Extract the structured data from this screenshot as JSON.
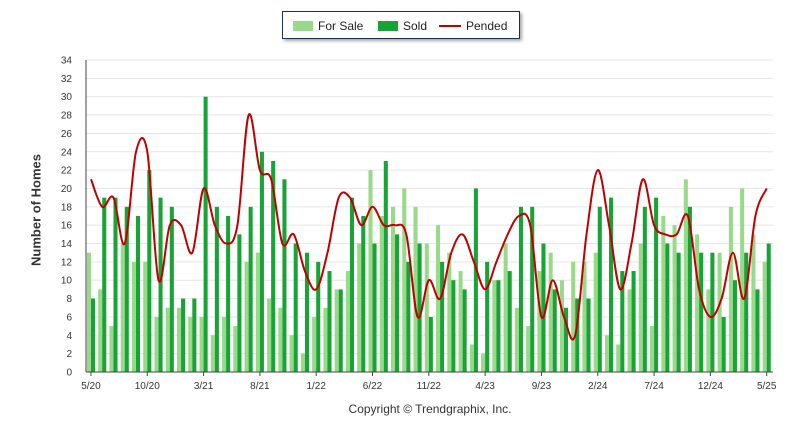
{
  "legend": {
    "for_sale": "For Sale",
    "sold": "Sold",
    "pended": "Pended"
  },
  "copyright": "Copyright © Trendgraphix, Inc.",
  "colors": {
    "for_sale": "#9ad98a",
    "sold": "#17a336",
    "pended": "#c00000",
    "grid": "#e6e6e6"
  },
  "chart_data": {
    "type": "bar",
    "title": "",
    "xlabel": "",
    "ylabel": "Number of Homes",
    "ylim": [
      0,
      34
    ],
    "yticks": [
      0,
      2,
      4,
      6,
      8,
      10,
      12,
      14,
      16,
      18,
      20,
      22,
      24,
      26,
      28,
      30,
      32,
      34
    ],
    "grid": true,
    "legend_position": "top-center",
    "categories": [
      "5/20",
      "6/20",
      "7/20",
      "8/20",
      "9/20",
      "10/20",
      "11/20",
      "12/20",
      "1/21",
      "2/21",
      "3/21",
      "4/21",
      "5/21",
      "6/21",
      "7/21",
      "8/21",
      "9/21",
      "10/21",
      "11/21",
      "12/21",
      "1/22",
      "2/22",
      "3/22",
      "4/22",
      "5/22",
      "6/22",
      "7/22",
      "8/22",
      "9/22",
      "10/22",
      "11/22",
      "12/22",
      "1/23",
      "2/23",
      "3/23",
      "4/23",
      "5/23",
      "6/23",
      "7/23",
      "8/23",
      "9/23",
      "10/23",
      "11/23",
      "12/23",
      "1/24",
      "2/24",
      "3/24",
      "4/24",
      "5/24",
      "6/24",
      "7/24",
      "8/24",
      "9/24",
      "10/24",
      "11/24",
      "12/24",
      "1/25",
      "2/25",
      "3/25",
      "4/25",
      "5/25"
    ],
    "x_tick_labels": [
      "5/20",
      "10/20",
      "3/21",
      "8/21",
      "1/22",
      "6/22",
      "11/22",
      "4/23",
      "9/23",
      "2/24",
      "7/24",
      "12/24",
      "5/25"
    ],
    "series": [
      {
        "name": "For Sale",
        "kind": "bar",
        "values": [
          13,
          9,
          5,
          14,
          12,
          12,
          6,
          7,
          7,
          6,
          6,
          4,
          6,
          5,
          12,
          13,
          8,
          7,
          4,
          2,
          6,
          7,
          9,
          11,
          14,
          22,
          17,
          18,
          20,
          18,
          14,
          16,
          13,
          11,
          3,
          2,
          10,
          14,
          7,
          5,
          11,
          13,
          10,
          12,
          12,
          13,
          4,
          3,
          9,
          14,
          5,
          17,
          16,
          21,
          15,
          9,
          13,
          18,
          20,
          15,
          12
        ]
      },
      {
        "name": "Sold",
        "kind": "bar",
        "values": [
          8,
          19,
          19,
          18,
          17,
          22,
          19,
          18,
          8,
          8,
          30,
          18,
          17,
          15,
          18,
          24,
          23,
          21,
          14,
          13,
          12,
          11,
          9,
          19,
          17,
          14,
          23,
          15,
          12,
          14,
          6,
          12,
          10,
          9,
          20,
          12,
          10,
          11,
          18,
          18,
          14,
          9,
          7,
          8,
          8,
          18,
          19,
          11,
          11,
          18,
          19,
          14,
          13,
          18,
          13,
          13,
          6,
          10,
          13,
          9,
          14
        ]
      },
      {
        "name": "Pended",
        "kind": "line",
        "values": [
          21,
          18,
          19,
          14,
          24,
          24,
          10,
          16,
          16,
          13,
          20,
          16,
          14,
          16,
          28,
          22,
          21,
          14,
          15,
          11,
          9,
          13,
          19,
          19,
          16,
          18,
          16,
          16,
          15,
          6,
          10,
          8,
          13,
          15,
          12,
          9,
          12,
          15,
          17,
          16,
          6,
          10,
          6,
          4,
          15,
          22,
          16,
          9,
          14,
          21,
          16,
          15,
          15,
          17,
          9,
          6,
          8,
          13,
          8,
          17,
          20
        ]
      }
    ]
  }
}
